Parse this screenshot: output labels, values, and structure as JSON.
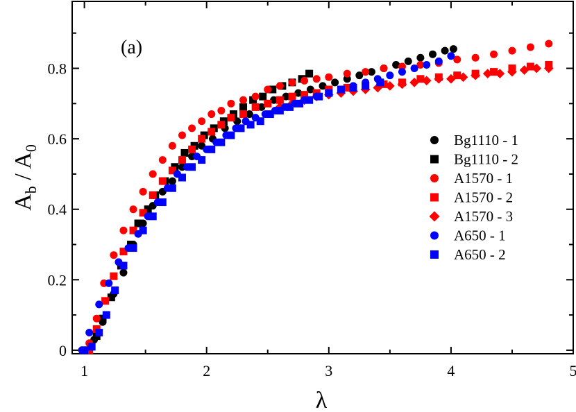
{
  "chart_data": {
    "type": "scatter",
    "panel_label": "(a)",
    "xlabel": "λ",
    "ylabel_main": "A",
    "ylabel_sub1": "b",
    "ylabel_sep": " / A",
    "ylabel_sub2": "0",
    "xlim": [
      0.9,
      5.0
    ],
    "ylim": [
      -0.01,
      0.99
    ],
    "xticks": [
      1,
      2,
      3,
      4,
      5
    ],
    "xtick_labels": [
      "1",
      "2",
      "3",
      "4",
      "5"
    ],
    "yticks": [
      0,
      0.2,
      0.4,
      0.6,
      0.8
    ],
    "ytick_labels": [
      "0",
      "0.2",
      "0.4",
      "0.6",
      "0.8"
    ],
    "legend_position": "right",
    "colors": {
      "black": "#000000",
      "red": "#ff0000",
      "blue": "#0000ff"
    },
    "series": [
      {
        "name": "Bg1110 - 1",
        "marker": "circle",
        "color": "#000000",
        "points": [
          [
            1.0,
            0.0
          ],
          [
            1.08,
            0.03
          ],
          [
            1.15,
            0.08
          ],
          [
            1.24,
            0.16
          ],
          [
            1.32,
            0.22
          ],
          [
            1.4,
            0.3
          ],
          [
            1.48,
            0.36
          ],
          [
            1.56,
            0.41
          ],
          [
            1.64,
            0.45
          ],
          [
            1.72,
            0.48
          ],
          [
            1.8,
            0.52
          ],
          [
            1.88,
            0.55
          ],
          [
            1.96,
            0.58
          ],
          [
            2.05,
            0.6
          ],
          [
            2.15,
            0.63
          ],
          [
            2.25,
            0.65
          ],
          [
            2.35,
            0.67
          ],
          [
            2.45,
            0.69
          ],
          [
            2.55,
            0.71
          ],
          [
            2.65,
            0.72
          ],
          [
            2.75,
            0.73
          ],
          [
            2.85,
            0.74
          ],
          [
            2.95,
            0.75
          ],
          [
            3.05,
            0.76
          ],
          [
            3.15,
            0.77
          ],
          [
            3.25,
            0.78
          ],
          [
            3.35,
            0.79
          ],
          [
            3.45,
            0.8
          ],
          [
            3.55,
            0.81
          ],
          [
            3.65,
            0.82
          ],
          [
            3.75,
            0.83
          ],
          [
            3.85,
            0.84
          ],
          [
            3.95,
            0.85
          ],
          [
            4.02,
            0.855
          ]
        ]
      },
      {
        "name": "Bg1110 - 2",
        "marker": "square",
        "color": "#000000",
        "points": [
          [
            1.0,
            0.0
          ],
          [
            1.05,
            0.01
          ],
          [
            1.1,
            0.04
          ],
          [
            1.15,
            0.09
          ],
          [
            1.22,
            0.15
          ],
          [
            1.3,
            0.24
          ],
          [
            1.38,
            0.3
          ],
          [
            1.44,
            0.36
          ],
          [
            1.52,
            0.4
          ],
          [
            1.58,
            0.44
          ],
          [
            1.66,
            0.48
          ],
          [
            1.74,
            0.52
          ],
          [
            1.82,
            0.56
          ],
          [
            1.9,
            0.58
          ],
          [
            1.98,
            0.61
          ],
          [
            2.06,
            0.63
          ],
          [
            2.14,
            0.65
          ],
          [
            2.22,
            0.67
          ],
          [
            2.3,
            0.69
          ],
          [
            2.38,
            0.71
          ],
          [
            2.46,
            0.72
          ],
          [
            2.54,
            0.74
          ],
          [
            2.62,
            0.75
          ],
          [
            2.7,
            0.76
          ],
          [
            2.78,
            0.77
          ],
          [
            2.84,
            0.785
          ]
        ]
      },
      {
        "name": "A1570 - 1",
        "marker": "circle",
        "color": "#ff0000",
        "points": [
          [
            1.04,
            0.02
          ],
          [
            1.1,
            0.09
          ],
          [
            1.16,
            0.19
          ],
          [
            1.24,
            0.27
          ],
          [
            1.32,
            0.34
          ],
          [
            1.4,
            0.4
          ],
          [
            1.48,
            0.45
          ],
          [
            1.56,
            0.5
          ],
          [
            1.64,
            0.54
          ],
          [
            1.72,
            0.58
          ],
          [
            1.8,
            0.61
          ],
          [
            1.88,
            0.63
          ],
          [
            1.96,
            0.65
          ],
          [
            2.04,
            0.67
          ],
          [
            2.12,
            0.68
          ],
          [
            2.2,
            0.7
          ],
          [
            2.3,
            0.71
          ],
          [
            2.4,
            0.72
          ],
          [
            2.5,
            0.74
          ],
          [
            2.6,
            0.75
          ],
          [
            2.7,
            0.76
          ],
          [
            2.8,
            0.765
          ],
          [
            2.9,
            0.77
          ],
          [
            3.0,
            0.775
          ],
          [
            3.15,
            0.785
          ],
          [
            3.3,
            0.79
          ],
          [
            3.45,
            0.8
          ],
          [
            3.6,
            0.805
          ],
          [
            3.75,
            0.81
          ],
          [
            3.9,
            0.815
          ],
          [
            4.05,
            0.825
          ],
          [
            4.2,
            0.83
          ],
          [
            4.35,
            0.84
          ],
          [
            4.5,
            0.85
          ],
          [
            4.65,
            0.86
          ],
          [
            4.8,
            0.87
          ]
        ]
      },
      {
        "name": "A1570 - 2",
        "marker": "square",
        "color": "#ff0000",
        "points": [
          [
            1.04,
            0.0
          ],
          [
            1.1,
            0.06
          ],
          [
            1.17,
            0.14
          ],
          [
            1.24,
            0.21
          ],
          [
            1.32,
            0.28
          ],
          [
            1.4,
            0.34
          ],
          [
            1.48,
            0.39
          ],
          [
            1.56,
            0.44
          ],
          [
            1.64,
            0.48
          ],
          [
            1.72,
            0.51
          ],
          [
            1.8,
            0.54
          ],
          [
            1.88,
            0.57
          ],
          [
            1.96,
            0.6
          ],
          [
            2.04,
            0.62
          ],
          [
            2.12,
            0.64
          ],
          [
            2.2,
            0.66
          ],
          [
            2.3,
            0.67
          ],
          [
            2.4,
            0.69
          ],
          [
            2.5,
            0.7
          ],
          [
            2.6,
            0.71
          ],
          [
            2.7,
            0.72
          ],
          [
            2.8,
            0.725
          ],
          [
            2.9,
            0.73
          ],
          [
            3.0,
            0.74
          ],
          [
            3.15,
            0.745
          ],
          [
            3.3,
            0.75
          ],
          [
            3.45,
            0.755
          ],
          [
            3.6,
            0.76
          ],
          [
            3.75,
            0.77
          ],
          [
            3.9,
            0.775
          ],
          [
            4.05,
            0.78
          ],
          [
            4.2,
            0.785
          ],
          [
            4.35,
            0.79
          ],
          [
            4.5,
            0.8
          ],
          [
            4.65,
            0.805
          ],
          [
            4.8,
            0.81
          ]
        ]
      },
      {
        "name": "A1570 - 3",
        "marker": "diamond",
        "color": "#ff0000",
        "points": [
          [
            2.6,
            0.69
          ],
          [
            2.7,
            0.7
          ],
          [
            2.8,
            0.71
          ],
          [
            2.9,
            0.72
          ],
          [
            3.0,
            0.725
          ],
          [
            3.1,
            0.73
          ],
          [
            3.2,
            0.735
          ],
          [
            3.3,
            0.74
          ],
          [
            3.4,
            0.745
          ],
          [
            3.5,
            0.75
          ],
          [
            3.6,
            0.755
          ],
          [
            3.7,
            0.76
          ],
          [
            3.8,
            0.765
          ],
          [
            3.9,
            0.77
          ],
          [
            4.0,
            0.77
          ],
          [
            4.1,
            0.775
          ],
          [
            4.2,
            0.78
          ],
          [
            4.3,
            0.785
          ],
          [
            4.4,
            0.785
          ],
          [
            4.5,
            0.79
          ],
          [
            4.6,
            0.795
          ],
          [
            4.7,
            0.8
          ],
          [
            4.8,
            0.8
          ]
        ]
      },
      {
        "name": "A650 - 1",
        "marker": "circle",
        "color": "#0000ff",
        "points": [
          [
            0.98,
            0.0
          ],
          [
            1.04,
            0.05
          ],
          [
            1.12,
            0.13
          ],
          [
            1.2,
            0.19
          ],
          [
            1.28,
            0.25
          ],
          [
            1.36,
            0.29
          ],
          [
            1.44,
            0.33
          ],
          [
            1.52,
            0.38
          ],
          [
            1.6,
            0.42
          ],
          [
            1.68,
            0.46
          ],
          [
            1.76,
            0.5
          ],
          [
            1.84,
            0.52
          ],
          [
            1.92,
            0.55
          ],
          [
            2.0,
            0.57
          ],
          [
            2.08,
            0.59
          ],
          [
            2.16,
            0.61
          ],
          [
            2.24,
            0.63
          ],
          [
            2.32,
            0.65
          ],
          [
            2.4,
            0.66
          ],
          [
            2.48,
            0.67
          ],
          [
            2.56,
            0.68
          ],
          [
            2.64,
            0.69
          ],
          [
            2.72,
            0.7
          ],
          [
            2.8,
            0.71
          ],
          [
            2.9,
            0.72
          ],
          [
            3.0,
            0.73
          ],
          [
            3.1,
            0.74
          ],
          [
            3.2,
            0.75
          ],
          [
            3.3,
            0.76
          ],
          [
            3.4,
            0.77
          ],
          [
            3.5,
            0.78
          ],
          [
            3.6,
            0.79
          ],
          [
            3.7,
            0.8
          ],
          [
            3.8,
            0.81
          ],
          [
            3.9,
            0.82
          ],
          [
            4.0,
            0.835
          ]
        ]
      },
      {
        "name": "A650 - 2",
        "marker": "square",
        "color": "#0000ff",
        "points": [
          [
            1.0,
            0.0
          ],
          [
            1.06,
            0.01
          ],
          [
            1.12,
            0.05
          ],
          [
            1.18,
            0.1
          ],
          [
            1.25,
            0.17
          ],
          [
            1.32,
            0.24
          ],
          [
            1.4,
            0.29
          ],
          [
            1.48,
            0.34
          ],
          [
            1.56,
            0.38
          ],
          [
            1.64,
            0.42
          ],
          [
            1.72,
            0.46
          ],
          [
            1.8,
            0.49
          ],
          [
            1.88,
            0.52
          ],
          [
            1.96,
            0.54
          ],
          [
            2.04,
            0.57
          ],
          [
            2.12,
            0.59
          ],
          [
            2.2,
            0.61
          ],
          [
            2.28,
            0.63
          ],
          [
            2.36,
            0.64
          ],
          [
            2.44,
            0.65
          ],
          [
            2.52,
            0.67
          ],
          [
            2.6,
            0.68
          ],
          [
            2.68,
            0.69
          ],
          [
            2.76,
            0.7
          ],
          [
            2.84,
            0.71
          ],
          [
            2.92,
            0.72
          ],
          [
            3.0,
            0.73
          ],
          [
            3.1,
            0.74
          ],
          [
            3.2,
            0.745
          ],
          [
            3.3,
            0.75
          ],
          [
            3.42,
            0.76
          ]
        ]
      }
    ]
  }
}
